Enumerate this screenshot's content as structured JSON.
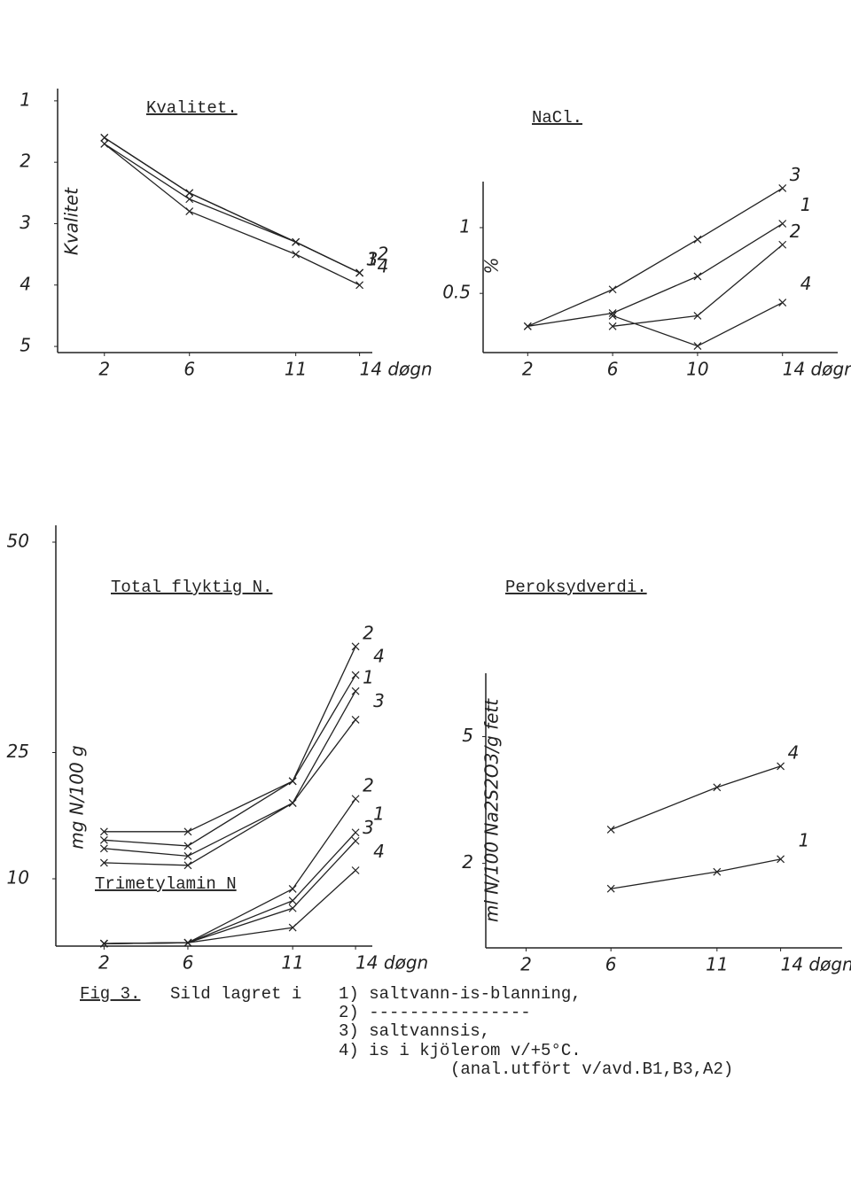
{
  "chart_data": [
    {
      "type": "line",
      "title": "Kvalitet.",
      "y_label": "Kvalitet",
      "x": [
        2,
        6,
        11,
        14
      ],
      "xlim": [
        -0.2,
        14.6
      ],
      "xticks": [
        2,
        6,
        11,
        {
          "value": 14,
          "label": "14 døgn"
        }
      ],
      "ylim": [
        5.1,
        0.8
      ],
      "yticks": [
        1,
        2,
        3,
        4,
        5
      ],
      "grid": false,
      "color": "#222222",
      "series": [
        {
          "name": "1",
          "values": [
            1.6,
            2.5,
            3.3,
            3.8
          ]
        },
        {
          "name": "2",
          "values": [
            1.6,
            2.5,
            3.3,
            3.8
          ]
        },
        {
          "name": "3",
          "values": [
            1.7,
            2.6,
            3.3,
            3.8
          ]
        },
        {
          "name": "4",
          "values": [
            1.7,
            2.8,
            3.5,
            4.0
          ]
        }
      ]
    },
    {
      "type": "line",
      "title": "NaCl.",
      "y_label": "%",
      "x": [
        2,
        6,
        10,
        14
      ],
      "xlim": [
        -0.1,
        16.6
      ],
      "xticks": [
        2,
        6,
        10,
        {
          "value": 14,
          "label": "14 døgn"
        }
      ],
      "ylim": [
        0.05,
        1.35
      ],
      "yticks": [
        0.5,
        1
      ],
      "grid": false,
      "color": "#222222",
      "series": [
        {
          "name": "3",
          "values": [
            0.25,
            0.53,
            0.91,
            1.3
          ]
        },
        {
          "name": "1",
          "values": [
            0.25,
            0.35,
            0.63,
            1.03
          ]
        },
        {
          "name": "2",
          "values": [
            null,
            0.25,
            0.33,
            0.87
          ]
        },
        {
          "name": "4",
          "values": [
            null,
            0.33,
            0.1,
            0.43
          ]
        }
      ]
    },
    {
      "type": "line",
      "title": "Total flyktig N.",
      "annotation": "Trimetylamin N",
      "y_label": "mg N/100 g",
      "x": [
        2,
        6,
        11,
        14
      ],
      "xlim": [
        -0.3,
        14.8
      ],
      "xticks": [
        2,
        6,
        11,
        {
          "value": 14,
          "label": "14 døgn"
        }
      ],
      "ylim": [
        2,
        52
      ],
      "yticks": [
        10,
        25,
        50
      ],
      "grid": false,
      "color": "#222222",
      "series": [
        {
          "name": "2",
          "values": [
            15.6,
            15.6,
            21.6,
            37.6
          ]
        },
        {
          "name": "4",
          "values": [
            14.6,
            13.9,
            21.6,
            34.2
          ]
        },
        {
          "name": "1",
          "values": [
            13.6,
            12.7,
            19,
            32.3
          ]
        },
        {
          "name": "3",
          "values": [
            11.9,
            11.6,
            19,
            28.9
          ]
        },
        {
          "name": "2",
          "values": [
            2.3,
            2.4,
            8.8,
            19.5
          ]
        },
        {
          "name": "1",
          "values": [
            2.3,
            2.4,
            7.4,
            15.5
          ]
        },
        {
          "name": "3",
          "values": [
            2.3,
            2.4,
            6.5,
            14.5
          ]
        },
        {
          "name": "4",
          "values": [
            2.3,
            2.4,
            4.2,
            11
          ]
        }
      ]
    },
    {
      "type": "line",
      "title": "Peroksydverdi.",
      "y_label": "ml N/100 Na2S2O3/g fett",
      "x": [
        2,
        6,
        11,
        14
      ],
      "xlim": [
        0.1,
        16.9
      ],
      "xticks": [
        2,
        6,
        11,
        {
          "value": 14,
          "label": "14 døgn"
        }
      ],
      "ylim": [
        0,
        6.5
      ],
      "yticks": [
        2,
        5
      ],
      "grid": false,
      "color": "#222222",
      "series": [
        {
          "name": "4",
          "values": [
            null,
            2.8,
            3.8,
            4.3
          ]
        },
        {
          "name": "1",
          "values": [
            null,
            1.4,
            1.8,
            2.1
          ]
        }
      ]
    }
  ],
  "caption": {
    "figure": "Fig 3.",
    "text": "Sild lagret i",
    "items": [
      "1) saltvann-is-blanning,",
      "2) ----------------",
      "3) saltvannsis,",
      "4) is i kjölerom v/+5°C."
    ],
    "note": "(anal.utfört v/avd.B1,B3,A2)"
  }
}
